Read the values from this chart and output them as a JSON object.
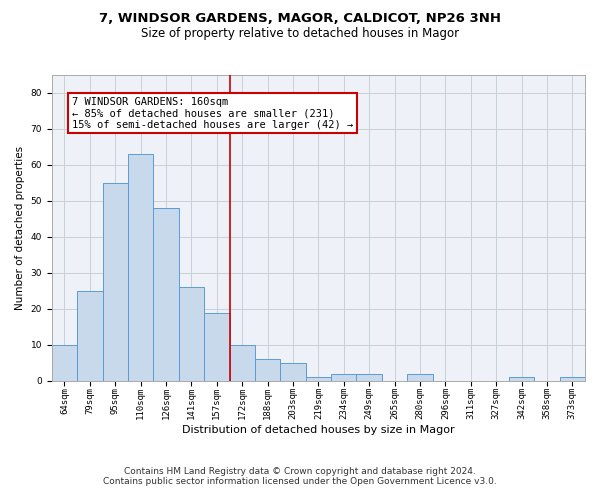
{
  "title_line1": "7, WINDSOR GARDENS, MAGOR, CALDICOT, NP26 3NH",
  "title_line2": "Size of property relative to detached houses in Magor",
  "xlabel": "Distribution of detached houses by size in Magor",
  "ylabel": "Number of detached properties",
  "categories": [
    "64sqm",
    "79sqm",
    "95sqm",
    "110sqm",
    "126sqm",
    "141sqm",
    "157sqm",
    "172sqm",
    "188sqm",
    "203sqm",
    "219sqm",
    "234sqm",
    "249sqm",
    "265sqm",
    "280sqm",
    "296sqm",
    "311sqm",
    "327sqm",
    "342sqm",
    "358sqm",
    "373sqm"
  ],
  "values": [
    10,
    25,
    55,
    63,
    48,
    26,
    19,
    10,
    6,
    5,
    1,
    2,
    2,
    0,
    2,
    0,
    0,
    0,
    1,
    0,
    1
  ],
  "bar_color": "#c8d9ec",
  "bar_edge_color": "#5b9bd5",
  "grid_color": "#c8d0d8",
  "background_color": "#eef2f8",
  "annotation_box_text": "7 WINDSOR GARDENS: 160sqm\n← 85% of detached houses are smaller (231)\n15% of semi-detached houses are larger (42) →",
  "annotation_box_color": "#ffffff",
  "annotation_box_edge_color": "#cc0000",
  "vline_x_index": 6.5,
  "vline_color": "#cc0000",
  "ylim": [
    0,
    85
  ],
  "yticks": [
    0,
    10,
    20,
    30,
    40,
    50,
    60,
    70,
    80
  ],
  "footer_line1": "Contains HM Land Registry data © Crown copyright and database right 2024.",
  "footer_line2": "Contains public sector information licensed under the Open Government Licence v3.0.",
  "title_fontsize": 9.5,
  "subtitle_fontsize": 8.5,
  "xlabel_fontsize": 8,
  "ylabel_fontsize": 7.5,
  "tick_fontsize": 6.5,
  "footer_fontsize": 6.5,
  "annotation_fontsize": 7.5
}
